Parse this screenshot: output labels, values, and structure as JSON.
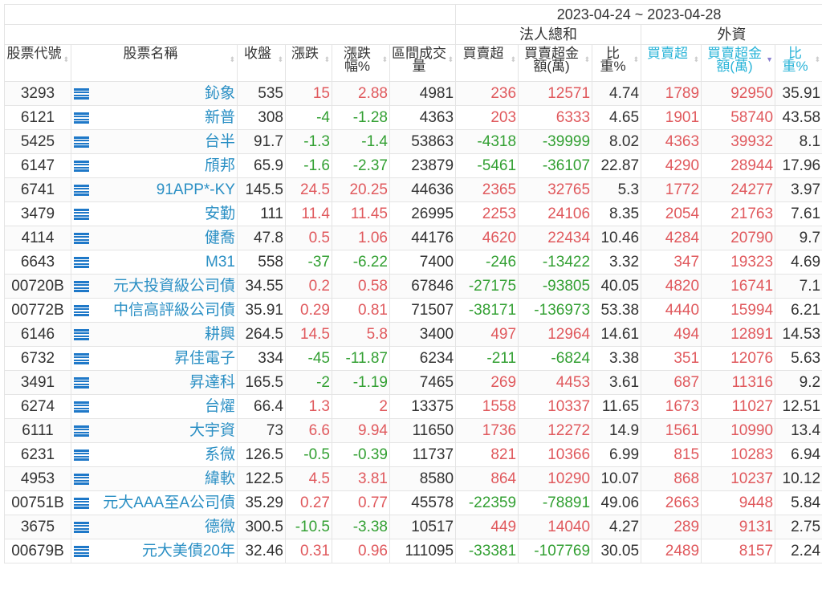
{
  "header": {
    "date_range": "2023-04-24 ~ 2023-04-28",
    "group_institutional": "法人總和",
    "group_foreign": "外資",
    "columns": [
      "股票代號",
      "股票名稱",
      "收盤",
      "漲跌",
      "漲跌幅%",
      "區間成交量",
      "買賣超",
      "買賣超金額(萬)",
      "比重%",
      "買賣超",
      "買賣超金額(萬)",
      "比重%"
    ],
    "sorted_column": "外資 買賣超金額(萬)",
    "sort_direction": "desc"
  },
  "colors": {
    "up": "#e0595d",
    "down": "#33a033",
    "name": "#2a8fc4",
    "foreign_header": "#2ab4d8",
    "list_icon": "#1e78c8"
  },
  "list_icon": "list-icon",
  "rows": [
    [
      "3293",
      "鈊象",
      "535",
      "15",
      "2.88",
      "4981",
      "236",
      "12571",
      "4.74",
      "1789",
      "92950",
      "35.91"
    ],
    [
      "6121",
      "新普",
      "308",
      "-4",
      "-1.28",
      "4363",
      "203",
      "6333",
      "4.65",
      "1901",
      "58740",
      "43.58"
    ],
    [
      "5425",
      "台半",
      "91.7",
      "-1.3",
      "-1.4",
      "53863",
      "-4318",
      "-39999",
      "8.02",
      "4363",
      "39932",
      "8.1"
    ],
    [
      "6147",
      "頎邦",
      "65.9",
      "-1.6",
      "-2.37",
      "23879",
      "-5461",
      "-36107",
      "22.87",
      "4290",
      "28944",
      "17.96"
    ],
    [
      "6741",
      "91APP*-KY",
      "145.5",
      "24.5",
      "20.25",
      "44636",
      "2365",
      "32765",
      "5.3",
      "1772",
      "24277",
      "3.97"
    ],
    [
      "3479",
      "安勤",
      "111",
      "11.4",
      "11.45",
      "26995",
      "2253",
      "24106",
      "8.35",
      "2054",
      "21763",
      "7.61"
    ],
    [
      "4114",
      "健喬",
      "47.8",
      "0.5",
      "1.06",
      "44176",
      "4620",
      "22434",
      "10.46",
      "4284",
      "20790",
      "9.7"
    ],
    [
      "6643",
      "M31",
      "558",
      "-37",
      "-6.22",
      "7400",
      "-246",
      "-13422",
      "3.32",
      "347",
      "19323",
      "4.69"
    ],
    [
      "00720B",
      "元大投資級公司債",
      "34.55",
      "0.2",
      "0.58",
      "67846",
      "-27175",
      "-93805",
      "40.05",
      "4820",
      "16741",
      "7.1"
    ],
    [
      "00772B",
      "中信高評級公司債",
      "35.91",
      "0.29",
      "0.81",
      "71507",
      "-38171",
      "-136973",
      "53.38",
      "4440",
      "15994",
      "6.21"
    ],
    [
      "6146",
      "耕興",
      "264.5",
      "14.5",
      "5.8",
      "3400",
      "497",
      "12964",
      "14.61",
      "494",
      "12891",
      "14.53"
    ],
    [
      "6732",
      "昇佳電子",
      "334",
      "-45",
      "-11.87",
      "6234",
      "-211",
      "-6824",
      "3.38",
      "351",
      "12076",
      "5.63"
    ],
    [
      "3491",
      "昇達科",
      "165.5",
      "-2",
      "-1.19",
      "7465",
      "269",
      "4453",
      "3.61",
      "687",
      "11316",
      "9.2"
    ],
    [
      "6274",
      "台燿",
      "66.4",
      "1.3",
      "2",
      "13375",
      "1558",
      "10337",
      "11.65",
      "1673",
      "11027",
      "12.51"
    ],
    [
      "6111",
      "大宇資",
      "73",
      "6.6",
      "9.94",
      "11650",
      "1736",
      "12272",
      "14.9",
      "1561",
      "10990",
      "13.4"
    ],
    [
      "6231",
      "系微",
      "126.5",
      "-0.5",
      "-0.39",
      "11737",
      "821",
      "10366",
      "6.99",
      "815",
      "10283",
      "6.94"
    ],
    [
      "4953",
      "緯軟",
      "122.5",
      "4.5",
      "3.81",
      "8580",
      "864",
      "10290",
      "10.07",
      "868",
      "10237",
      "10.12"
    ],
    [
      "00751B",
      "元大AAA至A公司債",
      "35.29",
      "0.27",
      "0.77",
      "45578",
      "-22359",
      "-78891",
      "49.06",
      "2663",
      "9448",
      "5.84"
    ],
    [
      "3675",
      "德微",
      "300.5",
      "-10.5",
      "-3.38",
      "10517",
      "449",
      "14040",
      "4.27",
      "289",
      "9131",
      "2.75"
    ],
    [
      "00679B",
      "元大美債20年",
      "32.46",
      "0.31",
      "0.96",
      "111095",
      "-33381",
      "-107769",
      "30.05",
      "2489",
      "8157",
      "2.24"
    ]
  ]
}
